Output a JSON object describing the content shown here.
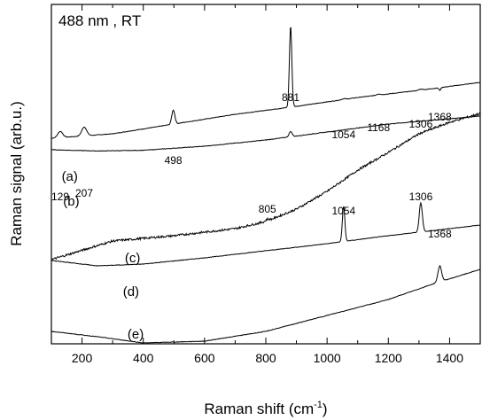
{
  "chart_data": {
    "type": "line",
    "condition_label": "488 nm , RT",
    "xlabel_main": "Raman shift (cm",
    "xlabel_sup": "-1",
    "xlabel_close": ")",
    "ylabel": "Raman signal (arb.u.)",
    "xlim": [
      100,
      1500
    ],
    "xticks": [
      200,
      400,
      600,
      800,
      1000,
      1200,
      1400
    ],
    "xtick_labels": [
      "200",
      "400",
      "600",
      "800",
      "1000",
      "1200",
      "1400"
    ],
    "y_tick_labels_shown": false,
    "series": [
      {
        "name": "(a)",
        "baseline": [
          [
            100,
            0.22
          ],
          [
            300,
            0.245
          ],
          [
            500,
            0.3
          ],
          [
            700,
            0.355
          ],
          [
            900,
            0.4
          ],
          [
            1100,
            0.45
          ],
          [
            1300,
            0.49
          ],
          [
            1500,
            0.535
          ]
        ],
        "peaks": [
          [
            129,
            0.035,
            8
          ],
          [
            207,
            0.05,
            8
          ],
          [
            498,
            0.08,
            5
          ],
          [
            881,
            0.46,
            4
          ],
          [
            1054,
            0.004,
            6
          ],
          [
            1168,
            0.006,
            6
          ],
          [
            1306,
            0.006,
            6
          ],
          [
            1368,
            -0.015,
            3
          ]
        ]
      },
      {
        "name": "(b)",
        "baseline": [
          [
            100,
            0.155
          ],
          [
            250,
            0.148
          ],
          [
            400,
            0.152
          ],
          [
            600,
            0.175
          ],
          [
            800,
            0.21
          ],
          [
            1000,
            0.255
          ],
          [
            1200,
            0.3
          ],
          [
            1400,
            0.33
          ],
          [
            1500,
            0.345
          ]
        ],
        "peaks": [
          [
            881,
            0.03,
            5
          ]
        ]
      },
      {
        "name": "(c)",
        "baseline": [
          [
            100,
            -0.465
          ],
          [
            300,
            -0.36
          ],
          [
            500,
            -0.33
          ],
          [
            700,
            -0.29
          ],
          [
            800,
            -0.25
          ],
          [
            900,
            -0.18
          ],
          [
            1000,
            -0.08
          ],
          [
            1100,
            0.04
          ],
          [
            1200,
            0.14
          ],
          [
            1300,
            0.245
          ],
          [
            1400,
            0.31
          ],
          [
            1500,
            0.36
          ]
        ],
        "peaks": [
          [
            805,
            0.01,
            6
          ]
        ]
      },
      {
        "name": "(d)",
        "baseline": [
          [
            100,
            -0.47
          ],
          [
            250,
            -0.5
          ],
          [
            400,
            -0.49
          ],
          [
            600,
            -0.455
          ],
          [
            800,
            -0.415
          ],
          [
            1000,
            -0.375
          ],
          [
            1200,
            -0.33
          ],
          [
            1400,
            -0.29
          ],
          [
            1500,
            -0.27
          ]
        ],
        "peaks": [
          [
            1054,
            0.2,
            4
          ],
          [
            1306,
            0.165,
            5
          ]
        ]
      },
      {
        "name": "(e)",
        "baseline": [
          [
            100,
            -0.87
          ],
          [
            250,
            -0.9
          ],
          [
            400,
            -0.935
          ],
          [
            600,
            -0.925
          ],
          [
            800,
            -0.87
          ],
          [
            1000,
            -0.78
          ],
          [
            1200,
            -0.69
          ],
          [
            1350,
            -0.6
          ],
          [
            1500,
            -0.52
          ]
        ],
        "peaks": [
          [
            1368,
            0.09,
            6
          ]
        ]
      }
    ],
    "peak_labels": [
      {
        "text": "129",
        "x": 129,
        "y": -0.13
      },
      {
        "text": "207",
        "x": 207,
        "y": -0.11
      },
      {
        "text": "498",
        "x": 498,
        "y": 0.075
      },
      {
        "text": "881",
        "x": 881,
        "y": 0.43
      },
      {
        "text": "1054",
        "x": 1054,
        "y": 0.22
      },
      {
        "text": "1168",
        "x": 1168,
        "y": 0.26
      },
      {
        "text": "1306",
        "x": 1306,
        "y": 0.28
      },
      {
        "text": "1368",
        "x": 1368,
        "y": 0.32
      },
      {
        "text": "805",
        "x": 805,
        "y": -0.2
      },
      {
        "text": "1054",
        "x": 1054,
        "y": -0.21
      },
      {
        "text": "1306",
        "x": 1306,
        "y": -0.13
      },
      {
        "text": "1368",
        "x": 1368,
        "y": -0.34
      }
    ],
    "trace_labels": [
      {
        "text": "(a)",
        "x": 160,
        "y": -0.02
      },
      {
        "text": "(b)",
        "x": 165,
        "y": -0.16
      },
      {
        "text": "(c)",
        "x": 365,
        "y": -0.48
      },
      {
        "text": "(d)",
        "x": 360,
        "y": -0.67
      },
      {
        "text": "(e)",
        "x": 375,
        "y": -0.91
      }
    ]
  }
}
